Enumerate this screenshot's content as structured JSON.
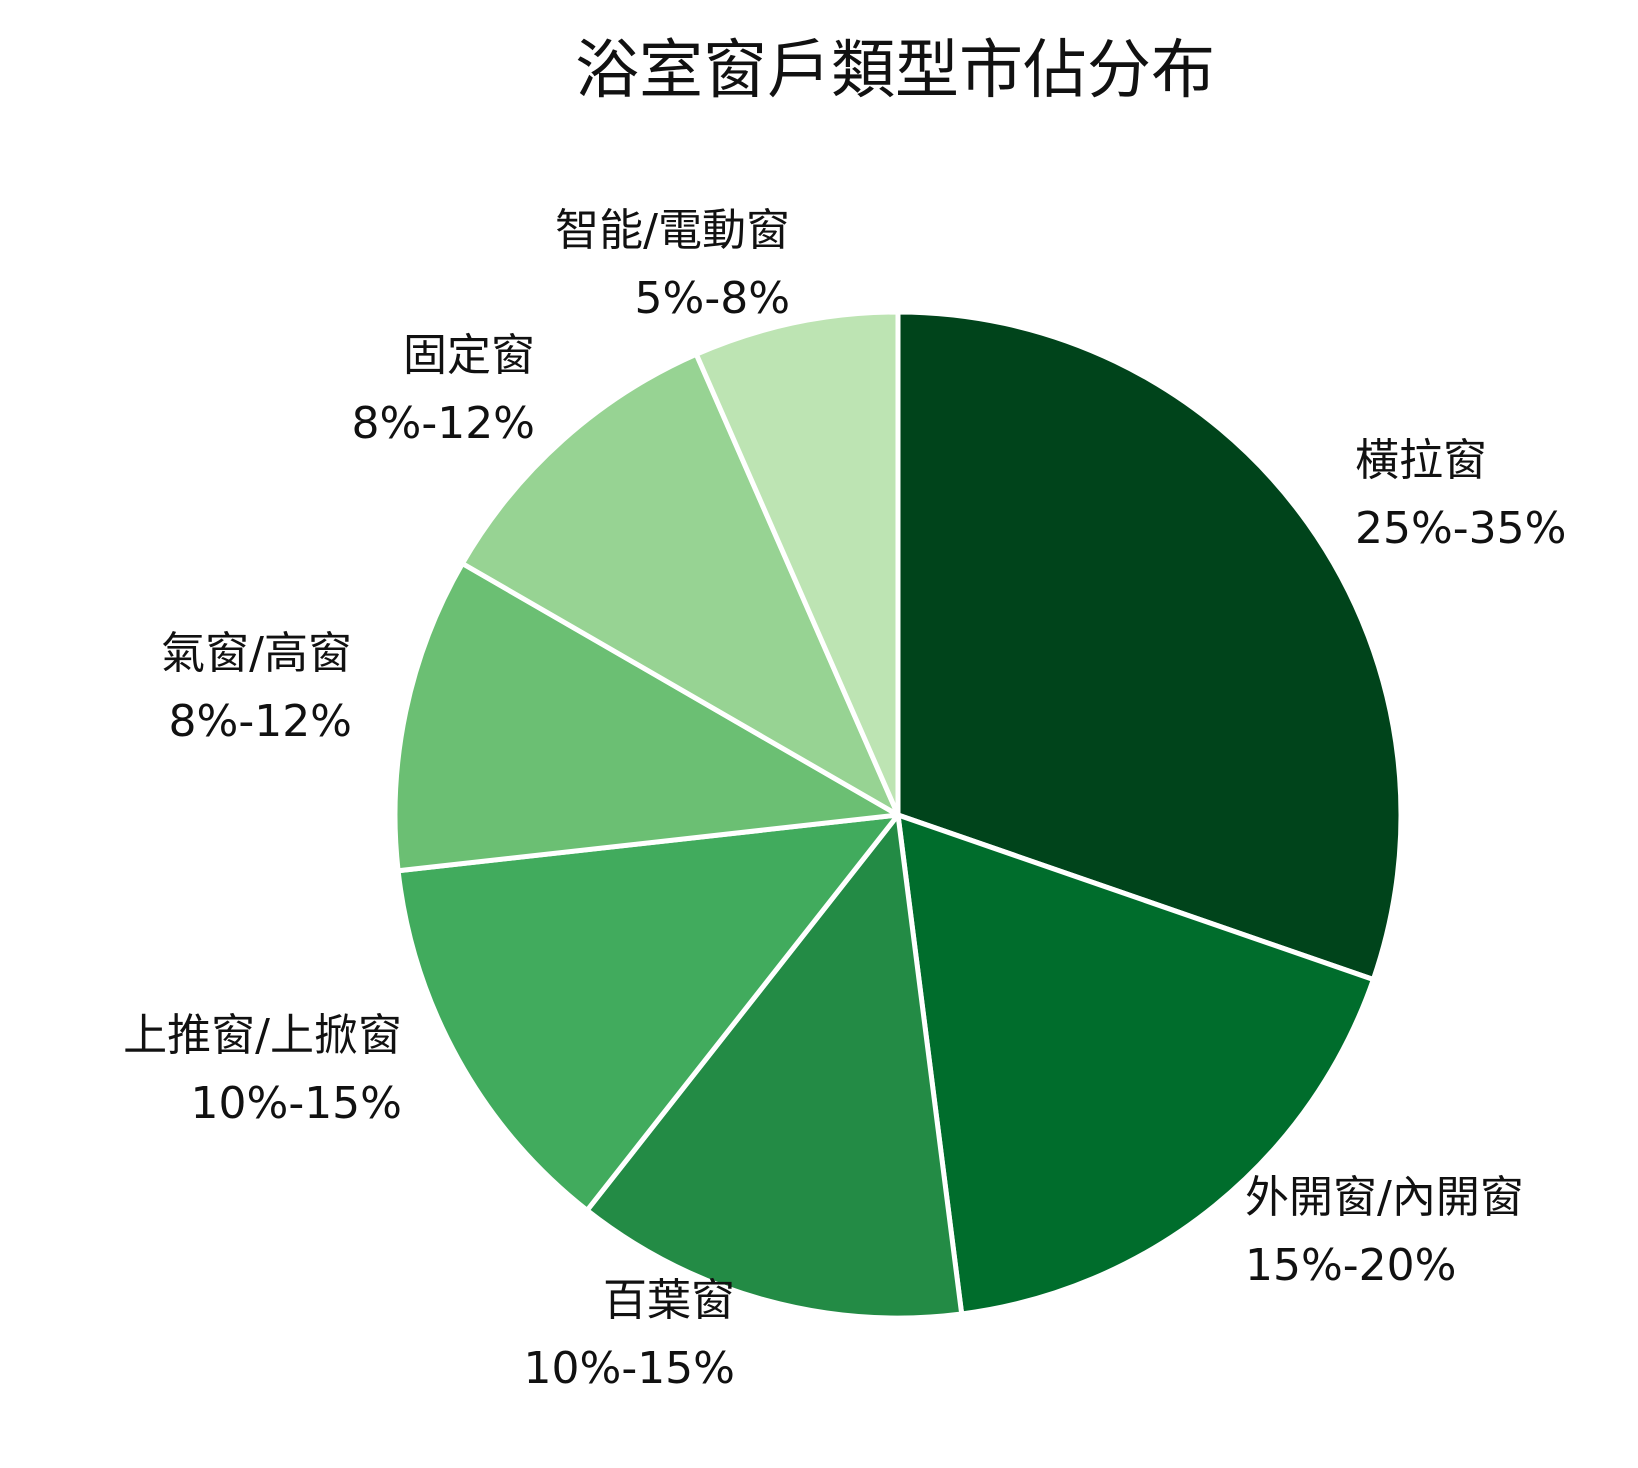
{
  "chart_data": {
    "type": "pie",
    "title": "浴室窗戶類型市佔分布",
    "start_angle": "12 o'clock",
    "direction": "clockwise",
    "slices": [
      {
        "label": "橫拉窗",
        "range_label": "25%-35%",
        "value": 30,
        "color": "#00441b"
      },
      {
        "label": "外開窗/內開窗",
        "range_label": "15%-20%",
        "value": 17.5,
        "color": "#006d2c"
      },
      {
        "label": "百葉窗",
        "range_label": "10%-15%",
        "value": 12.5,
        "color": "#238b45"
      },
      {
        "label": "上推窗/上掀窗",
        "range_label": "10%-15%",
        "value": 12.5,
        "color": "#41ab5d"
      },
      {
        "label": "氣窗/高窗",
        "range_label": "8%-12%",
        "value": 10,
        "color": "#6bbf73"
      },
      {
        "label": "固定窗",
        "range_label": "8%-12%",
        "value": 10,
        "color": "#97d393"
      },
      {
        "label": "智能/電動窗",
        "range_label": "5%-8%",
        "value": 6.5,
        "color": "#bde4b3"
      }
    ],
    "separator_color": "#ffffff"
  }
}
